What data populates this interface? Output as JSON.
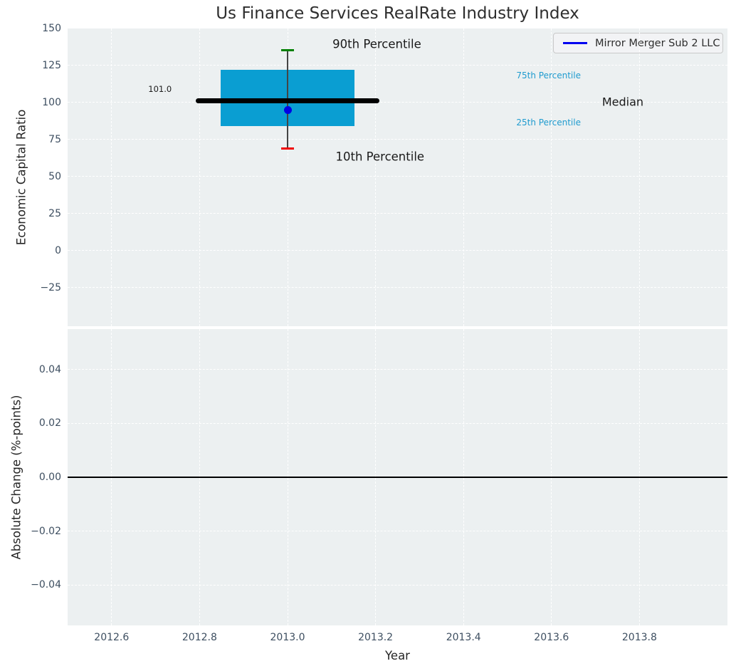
{
  "title": "Us Finance Services RealRate Industry Index",
  "legend": {
    "label": "Mirror Merger Sub 2 LLC",
    "line_color": "#0000f0"
  },
  "colors": {
    "panel_bg": "#ecf0f1",
    "grid_line": "#ffffff",
    "tick_label": "#3d4e60",
    "box_fill": "#0a9ed2",
    "median_line": "#000000",
    "whisker": "#444444",
    "p90_cap": "#008000",
    "p10_cap": "#f00000",
    "company_dot": "#0000e6",
    "zero_line": "#000000",
    "annotation_dark": "#1a1a1a",
    "annotation_cyan": "#1f9bcf"
  },
  "chart_data": [
    {
      "type": "boxplot",
      "panel": "top",
      "ylabel": "Economic Capital Ratio",
      "xlim": [
        2012.5,
        2014.0
      ],
      "ylim": [
        -51,
        150
      ],
      "xticks": [
        {
          "v": 2012.6,
          "label": "2012.6"
        },
        {
          "v": 2012.8,
          "label": "2012.8"
        },
        {
          "v": 2013.0,
          "label": "2013.0"
        },
        {
          "v": 2013.2,
          "label": "2013.2"
        },
        {
          "v": 2013.4,
          "label": "2013.4"
        },
        {
          "v": 2013.6,
          "label": "2013.6"
        },
        {
          "v": 2013.8,
          "label": "2013.8"
        }
      ],
      "yticks": [
        {
          "v": 150,
          "label": "150"
        },
        {
          "v": 125,
          "label": "125"
        },
        {
          "v": 100,
          "label": "100"
        },
        {
          "v": 75,
          "label": "75"
        },
        {
          "v": 50,
          "label": "50"
        },
        {
          "v": 25,
          "label": "25"
        },
        {
          "v": 0,
          "label": "0"
        },
        {
          "v": -25,
          "label": "−25"
        }
      ],
      "box": {
        "x": 2013.0,
        "median": 101.0,
        "median_label": "101.0",
        "q1": 84,
        "q3": 122,
        "p10": 69,
        "p90": 135.5,
        "box_halfwidth": 0.152,
        "median_halfwidth": 0.208,
        "cap_halfwidth": 0.0148,
        "company": {
          "x": 2013.0,
          "y": 95
        }
      },
      "annotations": [
        {
          "text": "90th Percentile",
          "x": 2013.203,
          "y": 139.5,
          "size": 16.5,
          "color_key": "annotation_dark",
          "anchor": "center"
        },
        {
          "text": "10th Percentile",
          "x": 2013.21,
          "y": 63.5,
          "size": 16.5,
          "color_key": "annotation_dark",
          "anchor": "center"
        },
        {
          "text": "75th Percentile",
          "x": 2013.52,
          "y": 118.3,
          "size": 12,
          "color_key": "annotation_cyan",
          "anchor": "left"
        },
        {
          "text": "25th Percentile",
          "x": 2013.52,
          "y": 86.5,
          "size": 12,
          "color_key": "annotation_cyan",
          "anchor": "left"
        },
        {
          "text": "Median",
          "x": 2013.715,
          "y": 100.5,
          "size": 16,
          "color_key": "annotation_dark",
          "anchor": "left"
        },
        {
          "text": "101.0",
          "x": 2012.71,
          "y": 109.0,
          "size": 11.5,
          "color_key": "annotation_dark",
          "anchor": "center"
        }
      ]
    },
    {
      "type": "line",
      "panel": "bottom",
      "ylabel": "Absolute Change (%-points)",
      "xlabel": "Year",
      "xlim": [
        2012.5,
        2014.0
      ],
      "ylim": [
        -0.055,
        0.055
      ],
      "yticks": [
        {
          "v": 0.04,
          "label": "0.04"
        },
        {
          "v": 0.02,
          "label": "0.02"
        },
        {
          "v": 0.0,
          "label": "0.00"
        },
        {
          "v": -0.02,
          "label": "−0.02"
        },
        {
          "v": -0.04,
          "label": "−0.04"
        }
      ],
      "zero_line": 0.0
    }
  ]
}
